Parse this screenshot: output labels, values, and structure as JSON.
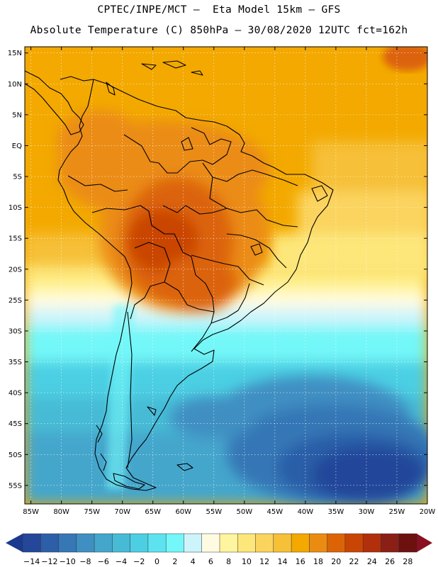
{
  "header": {
    "line1": "CPTEC/INPE/MCT —  Eta Model 15km — GFS",
    "line2": "Absolute Temperature (C) 850hPa — 30/08/2020 12UTC fct=162h"
  },
  "map": {
    "lat_labels": [
      "15N",
      "10N",
      "5N",
      "EQ",
      "5S",
      "10S",
      "15S",
      "20S",
      "25S",
      "30S",
      "35S",
      "40S",
      "45S",
      "50S",
      "55S"
    ],
    "lon_labels": [
      "85W",
      "80W",
      "75W",
      "70W",
      "65W",
      "60W",
      "55W",
      "50W",
      "45W",
      "40W",
      "35W",
      "30W",
      "25W",
      "20W"
    ],
    "lat_range": [
      -58,
      16
    ],
    "lon_range": [
      -86,
      -20
    ]
  },
  "colorbar": {
    "labels": [
      "-14",
      "-12",
      "-10",
      "-8",
      "-6",
      "-4",
      "-2",
      "0",
      "2",
      "4",
      "6",
      "8",
      "10",
      "12",
      "14",
      "16",
      "18",
      "20",
      "22",
      "24",
      "26",
      "28"
    ],
    "colors": [
      "#24479a",
      "#2c5fa8",
      "#3677b6",
      "#3f8fc2",
      "#45a6cc",
      "#47bbd6",
      "#4ccfe3",
      "#5de3f0",
      "#73f7f8",
      "#cdf4fb",
      "#fffbe3",
      "#fff59e",
      "#fde77a",
      "#fbd45e",
      "#f6c037",
      "#f3a900",
      "#eb8c12",
      "#dc6407",
      "#c94504",
      "#b12f0b",
      "#8a1f16",
      "#6c1010"
    ],
    "under_color": "#1b3a8f",
    "over_color": "#8a0f20"
  }
}
